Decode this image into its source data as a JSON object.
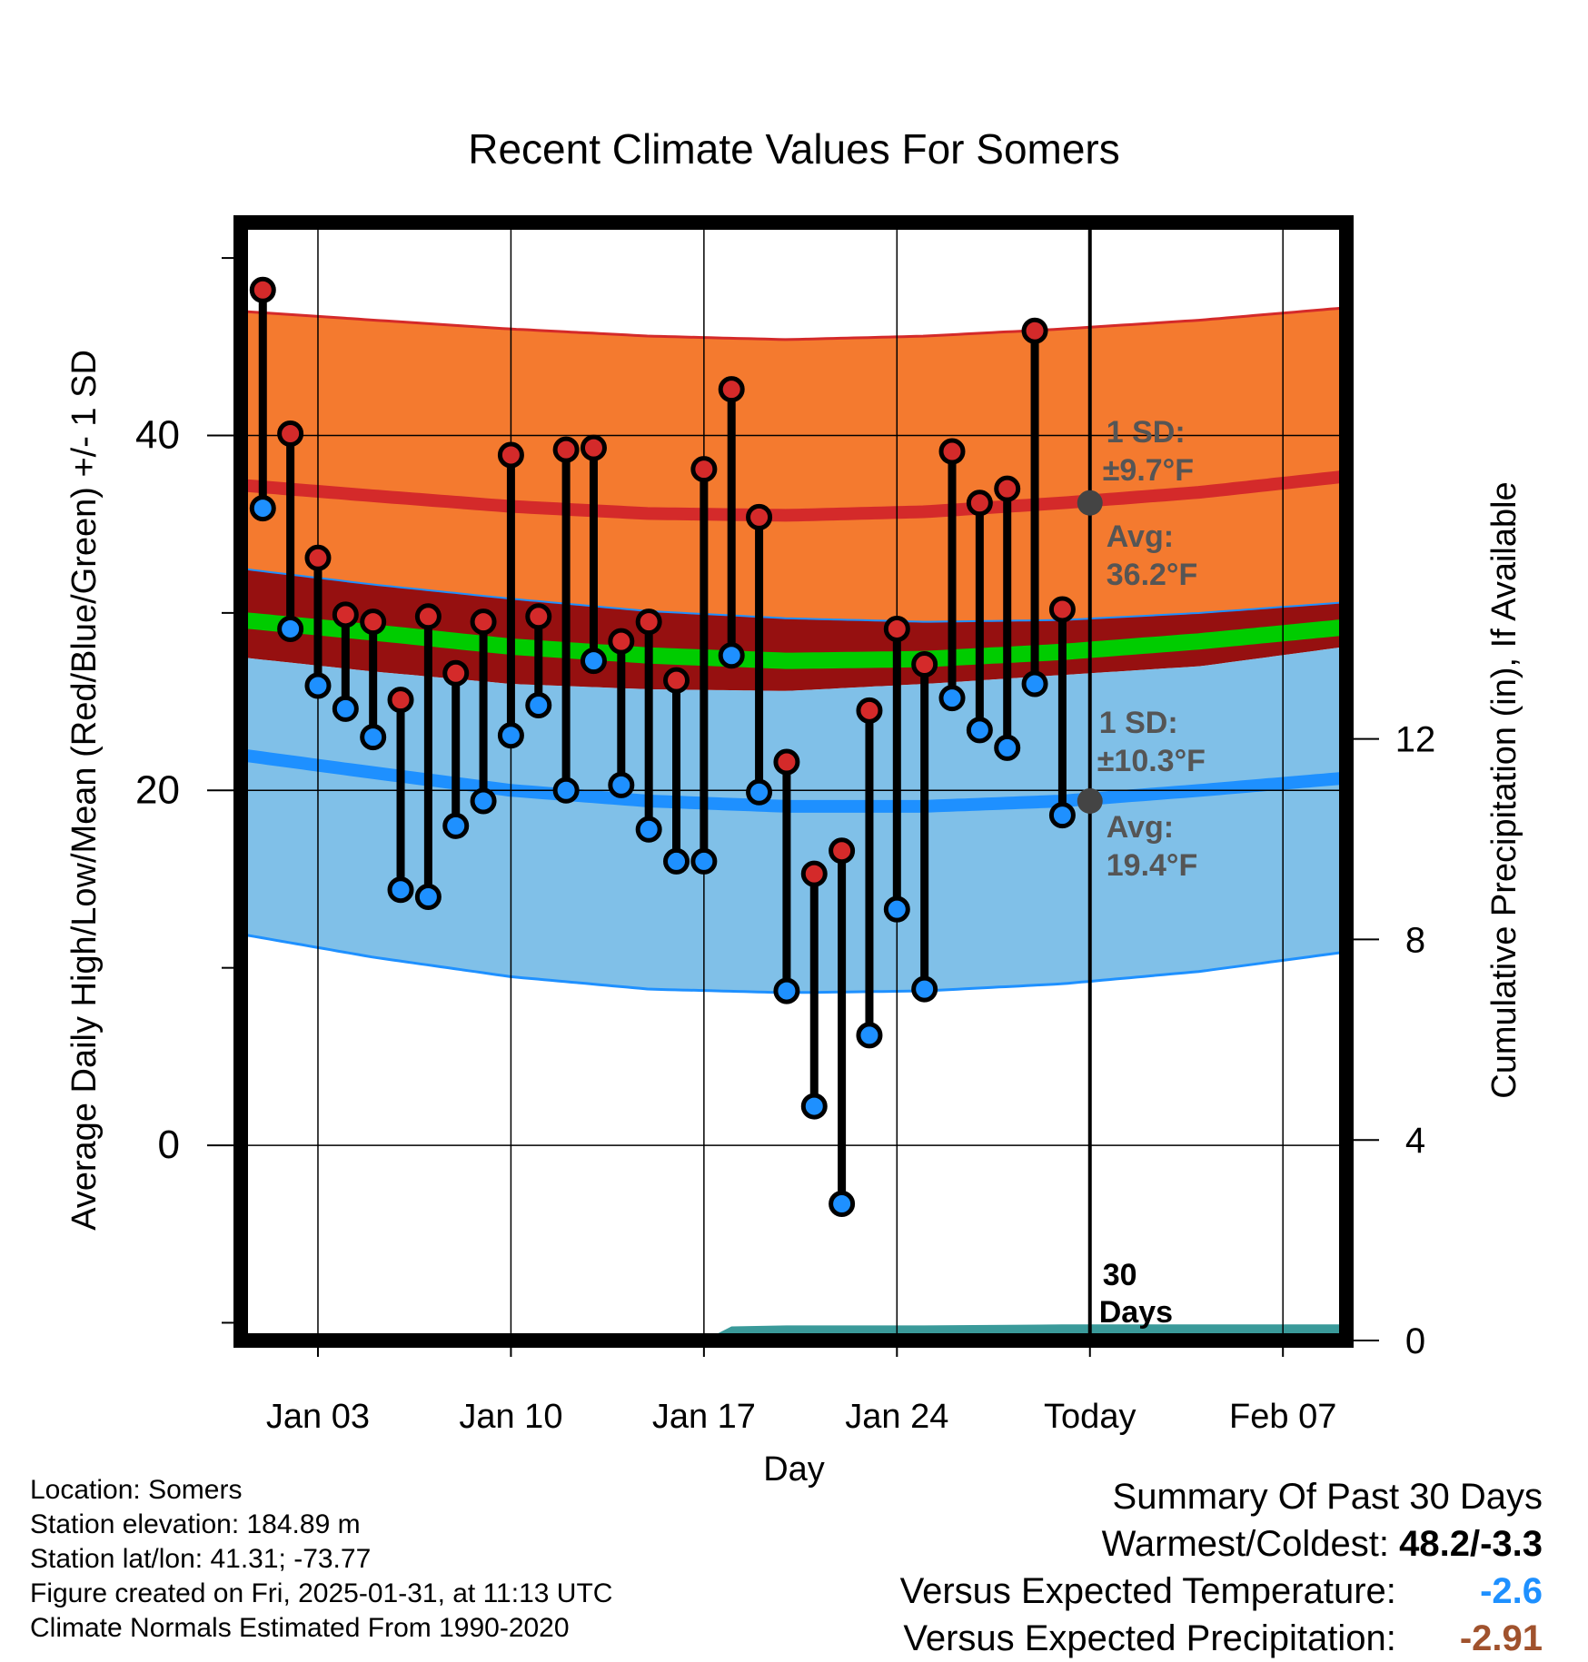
{
  "colors": {
    "high_band": "#f47a2f",
    "high_avg": "#d42a2a",
    "mean_band": "#961010",
    "mean_avg": "#00cc00",
    "low_band": "#80c0e8",
    "low_avg": "#1e90ff",
    "precip": "#3a9a9a",
    "high_dot": "#d42a2a",
    "low_dot": "#1e90ff",
    "annotation": "#555555",
    "temp_anomaly": "#1e90ff",
    "precip_anomaly": "#a0522d"
  },
  "chart_data": {
    "type": "line",
    "title": "Recent Climate Values For Somers",
    "xlabel": "Day",
    "ylabel": "Average Daily High/Low/Mean (Red/Blue/Green) +/- 1 SD",
    "y2label": "Cumulative Precipitation (in), If Available",
    "xlim": [
      0.2,
      40.3
    ],
    "ylim": [
      -11,
      52
    ],
    "y2lim": [
      0,
      22.3
    ],
    "x_ticks": [
      {
        "x": 3,
        "label": "Jan 03"
      },
      {
        "x": 10,
        "label": "Jan 10"
      },
      {
        "x": 17,
        "label": "Jan 17"
      },
      {
        "x": 24,
        "label": "Jan 24"
      },
      {
        "x": 31,
        "label": "Today"
      },
      {
        "x": 38,
        "label": "Feb 07"
      }
    ],
    "y_ticks": [
      0,
      20,
      40
    ],
    "y_minor_ticks": [
      -10,
      10,
      30,
      50
    ],
    "y2_ticks": [
      0,
      4,
      8,
      12
    ],
    "today_x": 31,
    "normals": {
      "x": [
        0.2,
        5,
        10,
        15,
        20,
        25,
        30,
        35,
        40.3
      ],
      "high_avg": [
        37.2,
        36.6,
        36.0,
        35.6,
        35.5,
        35.7,
        36.2,
        36.8,
        37.7
      ],
      "high_upper": [
        47.0,
        46.5,
        46.0,
        45.6,
        45.4,
        45.6,
        46.0,
        46.5,
        47.2
      ],
      "high_lower": [
        27.5,
        26.7,
        26.0,
        25.7,
        25.6,
        26.0,
        26.5,
        27.0,
        28.1
      ],
      "low_avg": [
        22.0,
        21.0,
        20.0,
        19.4,
        19.1,
        19.1,
        19.4,
        20.0,
        20.7
      ],
      "low_upper": [
        32.5,
        31.6,
        30.8,
        30.1,
        29.7,
        29.5,
        29.6,
        30.0,
        30.6
      ],
      "low_lower": [
        11.9,
        10.6,
        9.5,
        8.8,
        8.6,
        8.7,
        9.1,
        9.8,
        10.9
      ],
      "mean_avg": [
        29.6,
        28.9,
        28.1,
        27.6,
        27.3,
        27.4,
        27.8,
        28.4,
        29.2
      ]
    },
    "days": [
      1,
      2,
      3,
      4,
      5,
      6,
      7,
      8,
      9,
      10,
      11,
      12,
      13,
      14,
      15,
      16,
      17,
      18,
      19,
      20,
      21,
      22,
      23,
      24,
      25,
      26,
      27,
      28,
      29,
      30
    ],
    "highs": [
      48.2,
      40.1,
      33.1,
      29.9,
      29.5,
      25.1,
      29.8,
      26.6,
      29.5,
      38.9,
      29.8,
      39.2,
      39.3,
      28.4,
      29.5,
      26.2,
      38.1,
      42.6,
      35.4,
      21.6,
      15.3,
      16.6,
      24.5,
      29.1,
      27.1,
      39.1,
      36.2,
      37.0,
      45.9,
      30.2
    ],
    "lows": [
      35.9,
      29.1,
      25.9,
      24.6,
      23.0,
      14.4,
      14.0,
      18.0,
      19.4,
      23.1,
      24.8,
      20.0,
      27.3,
      20.3,
      17.8,
      16.0,
      16.0,
      27.6,
      19.9,
      8.7,
      2.2,
      -3.3,
      6.2,
      13.3,
      8.8,
      25.2,
      23.4,
      22.4,
      26.0,
      18.6
    ],
    "precip": {
      "x": [
        0.2,
        17,
        18,
        20,
        25,
        30,
        40.3
      ],
      "y": [
        0,
        0,
        0.28,
        0.3,
        0.3,
        0.32,
        0.32
      ]
    },
    "annotations": {
      "high_sd": "1 SD:",
      "high_sd_value": "±9.7°F",
      "high_avg_label": "Avg:",
      "high_avg_value": "36.2°F",
      "low_sd": "1 SD:",
      "low_sd_value": "±10.3°F",
      "low_avg_label": "Avg:",
      "low_avg_value": "19.4°F",
      "days_count": "30",
      "days_word": "Days",
      "today_high_avg": 36.2,
      "today_low_avg": 19.4
    }
  },
  "footer": {
    "location": "Location: Somers",
    "elevation": "Station elevation: 184.89 m",
    "latlon": "Station lat/lon: 41.31; -73.77",
    "created": "Figure created on Fri, 2025-01-31, at 11:13 UTC",
    "normals": "Climate Normals Estimated From 1990-2020"
  },
  "summary": {
    "title": "Summary Of Past 30 Days",
    "warmest_label": "Warmest/Coldest:",
    "warmest_value": "48.2/-3.3",
    "temp_label": "Versus Expected Temperature:",
    "temp_value": "-2.6",
    "precip_label": "Versus Expected Precipitation:",
    "precip_value": "-2.91"
  }
}
